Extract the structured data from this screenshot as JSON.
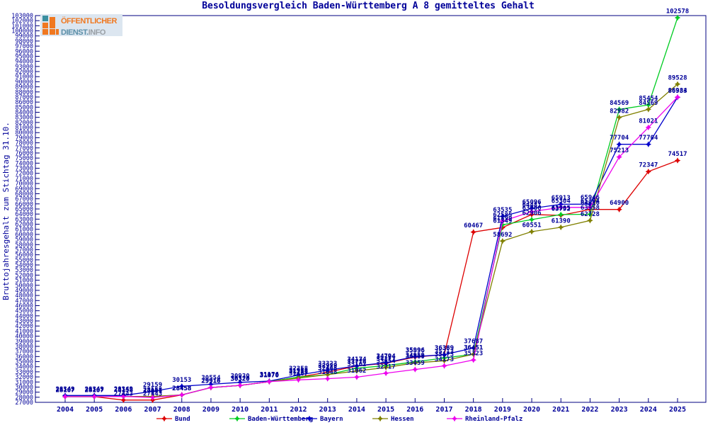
{
  "logo": {
    "line1": "ÖFFENTLICHER",
    "line2_a": "DIENST.",
    "line2_b": "INFO"
  },
  "chart_data": {
    "type": "line",
    "title": "Besoldungsvergleich Baden-Württemberg A 8 gemitteltes Gehalt",
    "ylabel": "Bruttojahresgehalt zum Stichtag 31.10.",
    "x": [
      2004,
      2005,
      2006,
      2007,
      2008,
      2009,
      2010,
      2011,
      2012,
      2013,
      2014,
      2015,
      2016,
      2017,
      2018,
      2019,
      2020,
      2021,
      2022,
      2023,
      2024,
      2025
    ],
    "yaxis": {
      "min": 27000,
      "max": 103000,
      "step": 1000
    },
    "grid": false,
    "legend_position": "bottom",
    "point_labels": true,
    "series": [
      {
        "name": "Bund",
        "color": "#dd0000",
        "values": [
          28107,
          28107,
          27443,
          27443,
          28458,
          29916,
          30320,
          31070,
          31958,
          32929,
          34134,
          34704,
          35896,
          36389,
          60467,
          61349,
          63906,
          63752,
          64916,
          64900,
          72347,
          74517
        ]
      },
      {
        "name": "Baden-Württemberg",
        "color": "#00cc22",
        "values": [
          28107,
          28107,
          28158,
          28158,
          28458,
          29916,
          30320,
          31070,
          31958,
          32448,
          33716,
          34211,
          34959,
          35713,
          36451,
          61899,
          62906,
          63905,
          63958,
          84569,
          85454,
          102578
        ]
      },
      {
        "name": "Bayern",
        "color": "#0000cc",
        "values": [
          28349,
          28349,
          28349,
          29159,
          30153,
          30554,
          30930,
          31176,
          32358,
          33323,
          34174,
          34794,
          35996,
          36369,
          37687,
          63535,
          65096,
          65913,
          65946,
          77704,
          77704,
          86933
        ]
      },
      {
        "name": "Hessen",
        "color": "#808000",
        "values": [
          28107,
          28107,
          28158,
          28158,
          28458,
          29916,
          30320,
          31070,
          31753,
          32448,
          33162,
          33854,
          34760,
          35173,
          36451,
          58692,
          60551,
          61390,
          62728,
          82982,
          84569,
          89528
        ]
      },
      {
        "name": "Rheinland-Pfalz",
        "color": "#ee00ee",
        "values": [
          28107,
          28107,
          28158,
          27961,
          28458,
          29916,
          30320,
          31070,
          31407,
          31648,
          31962,
          32717,
          33459,
          34173,
          35323,
          62585,
          64481,
          65304,
          65304,
          75213,
          81021,
          86984
        ]
      }
    ],
    "colors": {
      "text": "#000099",
      "axis": "#000080"
    }
  }
}
